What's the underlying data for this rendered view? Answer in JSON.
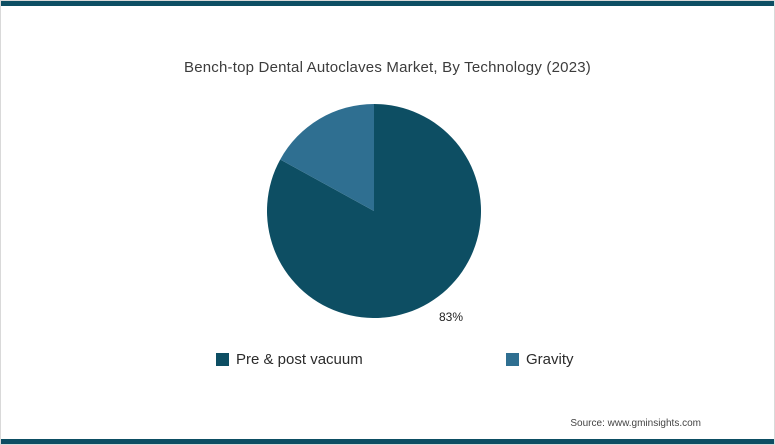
{
  "frame": {
    "accent_color": "#0d4e63"
  },
  "chart_data": {
    "type": "pie",
    "title": "Bench-top Dental Autoclaves Market, By Technology (2023)",
    "categories": [
      "Pre & post vacuum",
      "Gravity"
    ],
    "values": [
      83,
      17
    ],
    "unit": "%",
    "colors": [
      "#0d4e63",
      "#2f6f91"
    ],
    "start_angle": 0,
    "direction": "clockwise",
    "data_labels": [
      "83%",
      ""
    ],
    "legend_position": "bottom",
    "source": "Source: www.gminsights.com"
  }
}
